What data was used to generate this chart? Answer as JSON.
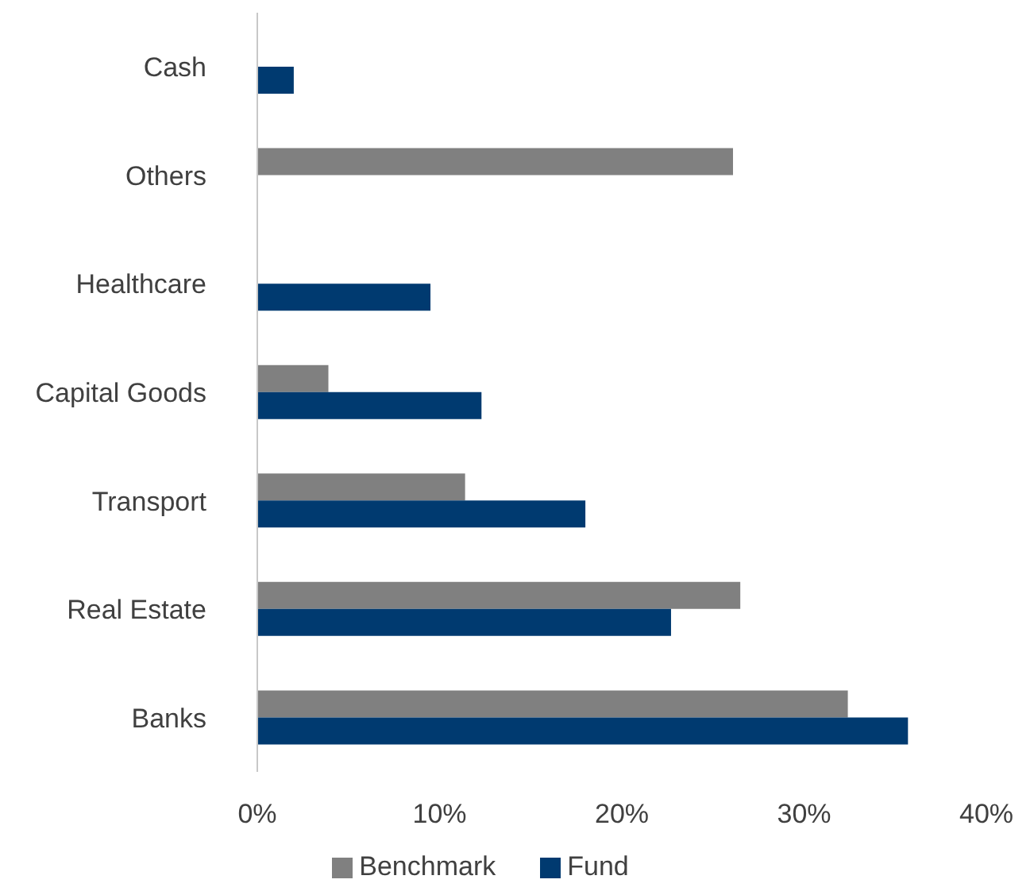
{
  "chart_data": {
    "type": "bar",
    "orientation": "horizontal",
    "categories": [
      "Cash",
      "Others",
      "Healthcare",
      "Capital Goods",
      "Transport",
      "Real Estate",
      "Banks"
    ],
    "series": [
      {
        "name": "Benchmark",
        "color": "#808080",
        "values": [
          null,
          26.1,
          null,
          3.9,
          11.4,
          26.5,
          32.4
        ]
      },
      {
        "name": "Fund",
        "color": "#003a70",
        "values": [
          2.0,
          null,
          9.5,
          12.3,
          18.0,
          22.7,
          35.7
        ]
      }
    ],
    "xlim": [
      0,
      40
    ],
    "xticks": [
      {
        "value": 0,
        "label": "0%"
      },
      {
        "value": 10,
        "label": "10%"
      },
      {
        "value": 20,
        "label": "20%"
      },
      {
        "value": 30,
        "label": "30%"
      },
      {
        "value": 40,
        "label": "40%"
      }
    ],
    "grid": false,
    "legend": "bottom"
  }
}
